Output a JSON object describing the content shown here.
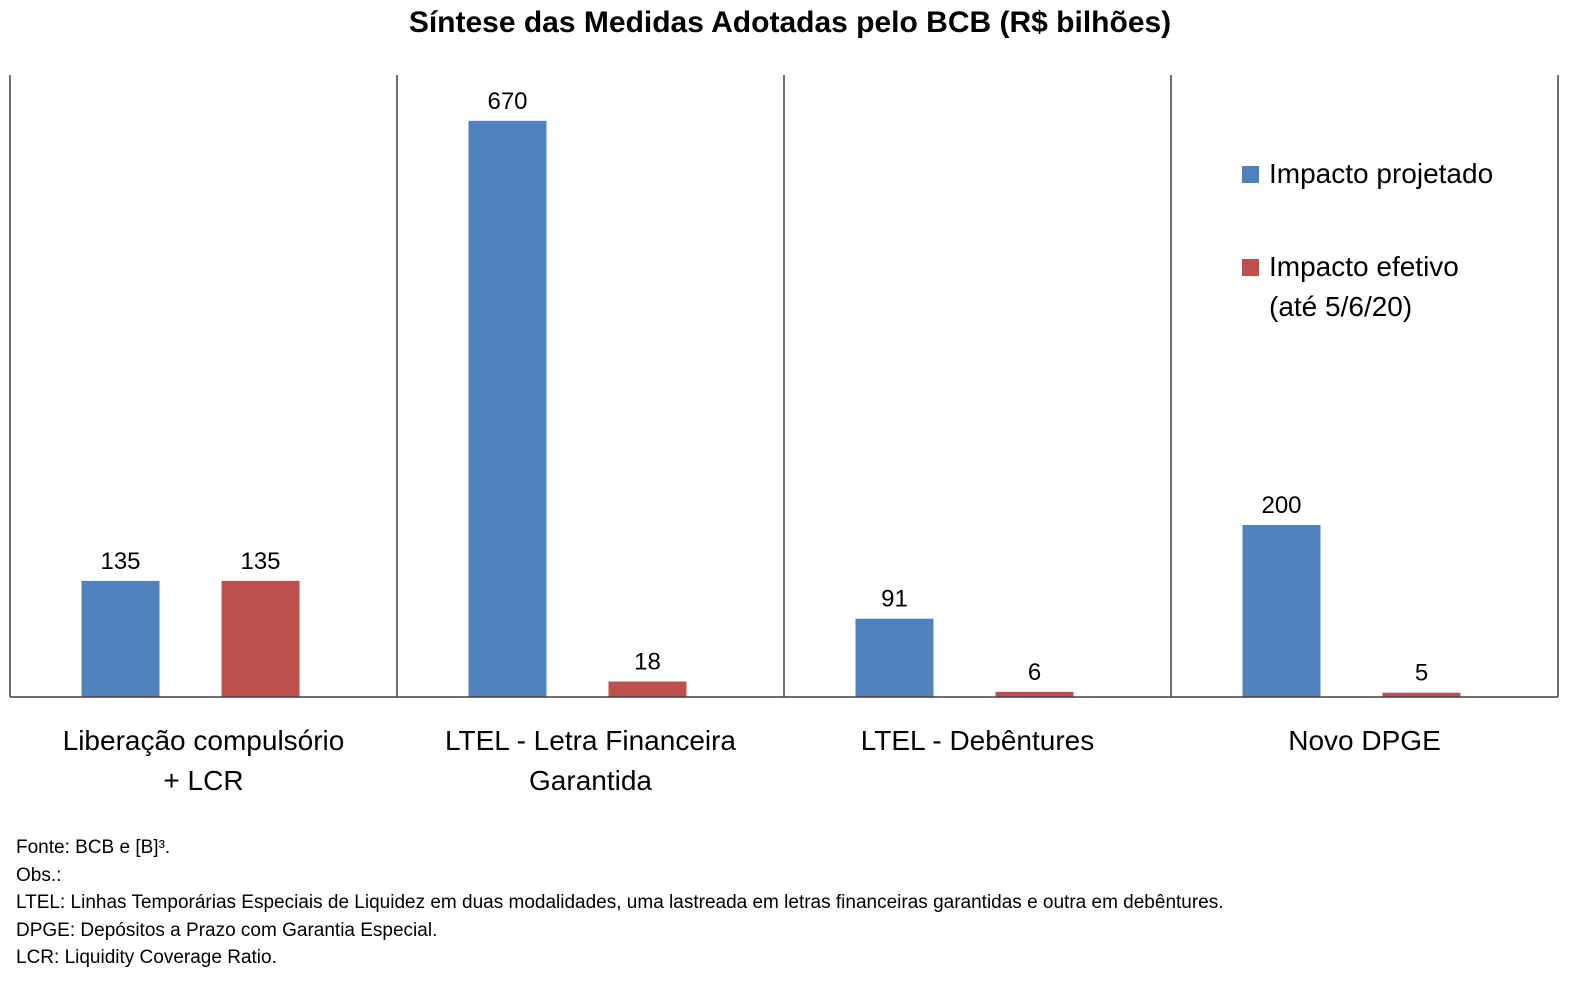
{
  "chart_data": {
    "type": "bar",
    "title": "Síntese das Medidas Adotadas pelo BCB (R$ bilhões)",
    "categories": [
      [
        "Liberação compulsório",
        "+ LCR"
      ],
      [
        "LTEL - Letra Financeira",
        "Garantida"
      ],
      [
        "LTEL - Debêntures"
      ],
      [
        "Novo DPGE"
      ]
    ],
    "series": [
      {
        "name": "Impacto projetado",
        "color": "#4F81BD",
        "values": [
          135,
          670,
          91,
          200
        ]
      },
      {
        "name": "Impacto efetivo (até 5/6/20)",
        "name_lines": [
          "Impacto efetivo",
          "(até 5/6/20)"
        ],
        "color": "#C0504D",
        "values": [
          135,
          18,
          6,
          5
        ]
      }
    ],
    "data_labels": [
      [
        "135",
        "670",
        "91",
        "200"
      ],
      [
        "135",
        "18",
        "6",
        "5"
      ]
    ],
    "ylim": [
      0,
      720
    ],
    "grid": false,
    "legend_position": "right"
  },
  "notes": [
    "Fonte: BCB e [B]³.",
    "Obs.:",
    "LTEL: Linhas Temporárias Especiais de Liquidez em duas modalidades, uma lastreada em letras financeiras garantidas e outra em debêntures.",
    "DPGE: Depósitos a Prazo com Garantia Especial.",
    "LCR: Liquidity Coverage Ratio."
  ]
}
